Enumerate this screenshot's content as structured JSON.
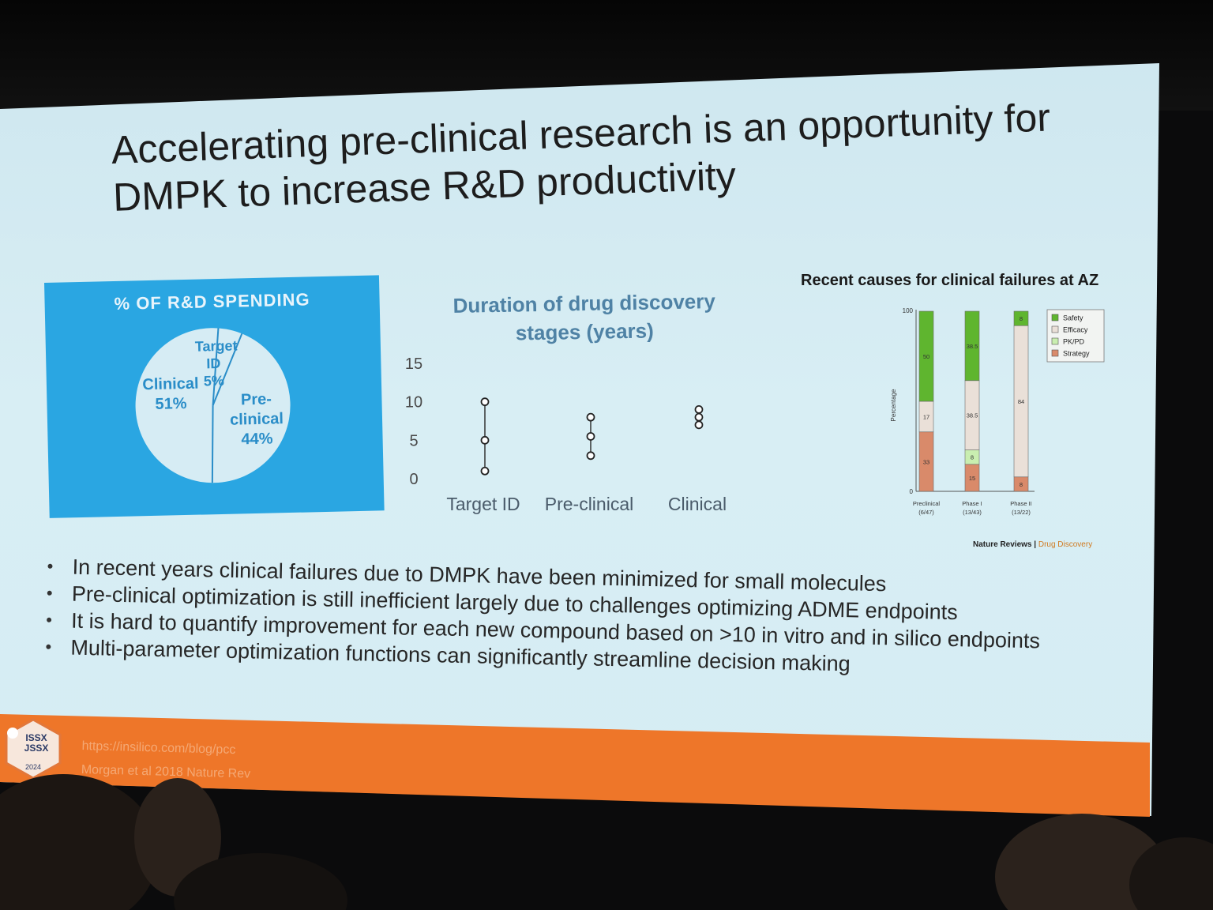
{
  "slide": {
    "title": "Accelerating pre-clinical research is an opportunity for DMPK to increase R&D productivity",
    "bullets": [
      "In recent years clinical failures due to DMPK have been minimized for small molecules",
      "Pre-clinical optimization is still inefficient largely due to challenges optimizing ADME endpoints",
      "It is hard to quantify improvement for each new compound based on >10 in vitro and in silico endpoints",
      "Multi-parameter optimization functions can significantly streamline decision making"
    ],
    "references": [
      "https://insilico.com/blog/pcc",
      "Morgan et al 2018 Nature Rev"
    ],
    "logo": {
      "line1": "ISSX",
      "line2": "JSSX",
      "year": "2024"
    },
    "colors": {
      "accent_blue": "#2aa6e2",
      "footer_orange": "#ee7629",
      "slide_bg": "#d5ecf3"
    }
  },
  "chart_data": [
    {
      "type": "pie",
      "title": "% OF R&D SPENDING",
      "slices": [
        {
          "label": "Clinical",
          "value": 51,
          "display": "51%"
        },
        {
          "label": "Target ID",
          "value": 5,
          "display": "5%"
        },
        {
          "label": "Pre-clinical",
          "value": 44,
          "display": "44%"
        }
      ]
    },
    {
      "type": "scatter",
      "title": "Duration of drug discovery stages (years)",
      "categories": [
        "Target ID",
        "Pre-clinical",
        "Clinical"
      ],
      "ylim": [
        0,
        15
      ],
      "yticks": [
        "15",
        "10",
        "5",
        "0"
      ],
      "points": [
        {
          "category": "Target ID",
          "values": [
            1,
            5,
            10
          ]
        },
        {
          "category": "Pre-clinical",
          "values": [
            3,
            5.5,
            8
          ]
        },
        {
          "category": "Clinical",
          "values": [
            7,
            8,
            9
          ]
        }
      ]
    },
    {
      "type": "bar",
      "stacked": true,
      "title": "Recent causes for clinical failures at AZ",
      "ylabel": "Percentage",
      "ylim": [
        0,
        100
      ],
      "yticks": [
        "100",
        "0"
      ],
      "categories": [
        "Preclinical",
        "Phase I",
        "Phase II"
      ],
      "category_sublabels": [
        "(6/47)",
        "(13/43)",
        "(13/22)"
      ],
      "series": [
        {
          "name": "Strategy",
          "color": "#d98a6a",
          "values": [
            33,
            15,
            8
          ],
          "labels": [
            "33",
            "15",
            "8"
          ]
        },
        {
          "name": "PK/PD",
          "color": "#c9eeb0",
          "values": [
            0,
            8,
            0
          ],
          "labels": [
            "",
            "8",
            ""
          ]
        },
        {
          "name": "Efficacy",
          "color": "#eae0d8",
          "values": [
            17,
            38.5,
            84
          ],
          "labels": [
            "17",
            "38.5",
            "84"
          ]
        },
        {
          "name": "Safety",
          "color": "#5fb52f",
          "values": [
            50,
            38.5,
            8
          ],
          "labels": [
            "50",
            "38.5",
            "8"
          ]
        }
      ],
      "legend_order": [
        "Safety",
        "Efficacy",
        "PK/PD",
        "Strategy"
      ],
      "legend_position": "top-right",
      "source": {
        "journal": "Nature Reviews",
        "section": "Drug Discovery"
      }
    }
  ]
}
